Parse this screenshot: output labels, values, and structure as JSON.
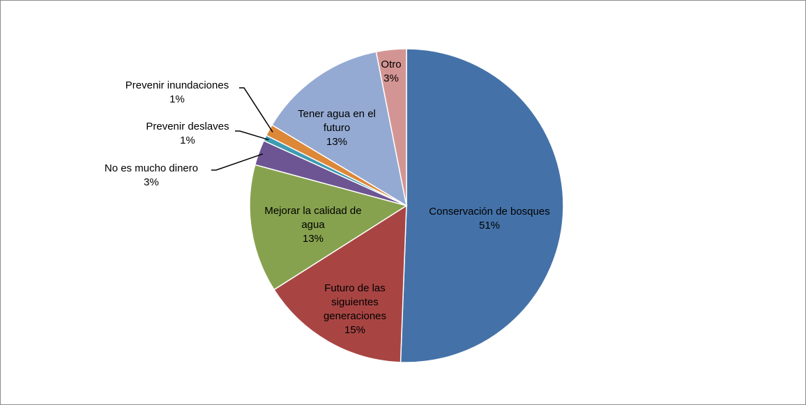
{
  "chart_data": {
    "type": "pie",
    "title": "",
    "start_angle_deg": 0,
    "direction": "clockwise",
    "slices": [
      {
        "label": "Conservación de bosques",
        "percent_label": "51%",
        "value": 50.6,
        "color": "#4472a8"
      },
      {
        "label": "Futuro de las siguientes generaciones",
        "percent_label": "15%",
        "value": 15.4,
        "color": "#a84543"
      },
      {
        "label": "Mejorar la calidad de agua",
        "percent_label": "13%",
        "value": 13.2,
        "color": "#87a24e"
      },
      {
        "label": "No es mucho dinero",
        "percent_label": "3%",
        "value": 2.6,
        "color": "#6c5592"
      },
      {
        "label": "Prevenir deslaves",
        "percent_label": "1%",
        "value": 0.6,
        "color": "#3e9bb2"
      },
      {
        "label": "Prevenir inundaciones",
        "percent_label": "1%",
        "value": 1.2,
        "color": "#dd8739"
      },
      {
        "label": "Tener agua en el futuro",
        "percent_label": "13%",
        "value": 13.3,
        "color": "#94aad3"
      },
      {
        "label": "Otro",
        "percent_label": "3%",
        "value": 3.1,
        "color": "#d39593"
      }
    ]
  }
}
